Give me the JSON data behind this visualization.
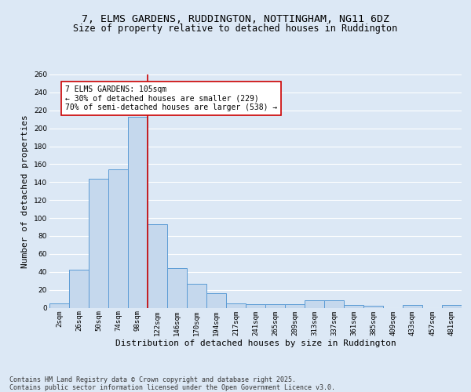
{
  "title1": "7, ELMS GARDENS, RUDDINGTON, NOTTINGHAM, NG11 6DZ",
  "title2": "Size of property relative to detached houses in Ruddington",
  "xlabel": "Distribution of detached houses by size in Ruddington",
  "ylabel": "Number of detached properties",
  "bar_labels": [
    "2sqm",
    "26sqm",
    "50sqm",
    "74sqm",
    "98sqm",
    "122sqm",
    "146sqm",
    "170sqm",
    "194sqm",
    "217sqm",
    "241sqm",
    "265sqm",
    "289sqm",
    "313sqm",
    "337sqm",
    "361sqm",
    "385sqm",
    "409sqm",
    "433sqm",
    "457sqm",
    "481sqm"
  ],
  "bar_values": [
    5,
    42,
    144,
    154,
    213,
    93,
    44,
    27,
    16,
    5,
    4,
    4,
    4,
    8,
    8,
    3,
    2,
    0,
    3,
    0,
    3
  ],
  "bar_color": "#c5d8ed",
  "bar_edge_color": "#5b9bd5",
  "background_color": "#dce8f5",
  "plot_bg_color": "#dce8f5",
  "grid_color": "#ffffff",
  "vline_color": "#cc0000",
  "annotation_text": "7 ELMS GARDENS: 105sqm\n← 30% of detached houses are smaller (229)\n70% of semi-detached houses are larger (538) →",
  "annotation_box_color": "#ffffff",
  "annotation_box_edge": "#cc0000",
  "ylim": [
    0,
    260
  ],
  "yticks": [
    0,
    20,
    40,
    60,
    80,
    100,
    120,
    140,
    160,
    180,
    200,
    220,
    240,
    260
  ],
  "footer": "Contains HM Land Registry data © Crown copyright and database right 2025.\nContains public sector information licensed under the Open Government Licence v3.0.",
  "title_fontsize": 9.5,
  "subtitle_fontsize": 8.5,
  "axis_label_fontsize": 8,
  "tick_fontsize": 6.5,
  "footer_fontsize": 6,
  "annot_fontsize": 7
}
